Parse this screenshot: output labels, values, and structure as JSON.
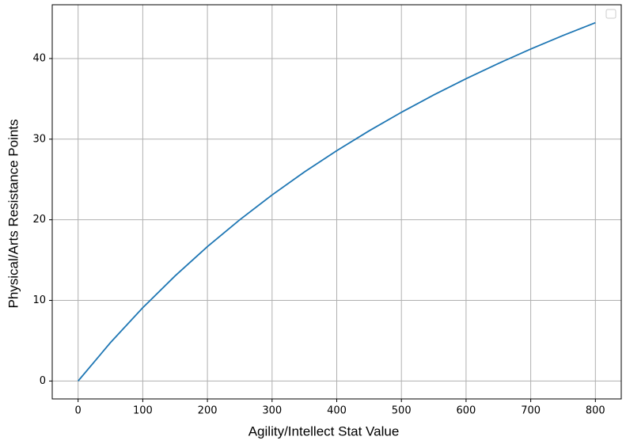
{
  "chart_data": {
    "type": "line",
    "x_label": "Agility/Intellect Stat Value",
    "y_label": "Physical/Arts Resistance Points",
    "x": [
      0,
      50,
      100,
      150,
      200,
      250,
      300,
      350,
      400,
      450,
      500,
      550,
      600,
      650,
      700,
      750,
      800
    ],
    "series": [
      {
        "color": "#1f77b4",
        "values": [
          0,
          4.76,
          9.09,
          13.04,
          16.67,
          20,
          23.08,
          25.93,
          28.57,
          31.03,
          33.33,
          35.48,
          37.5,
          39.39,
          41.18,
          42.86,
          44.44
        ]
      }
    ],
    "xlim": [
      -40,
      840
    ],
    "xticks": [
      0,
      100,
      200,
      300,
      400,
      500,
      600,
      700,
      800
    ],
    "ylim": [
      -2.22,
      46.67
    ],
    "yticks": [
      0,
      10,
      20,
      30,
      40
    ],
    "grid": true
  }
}
